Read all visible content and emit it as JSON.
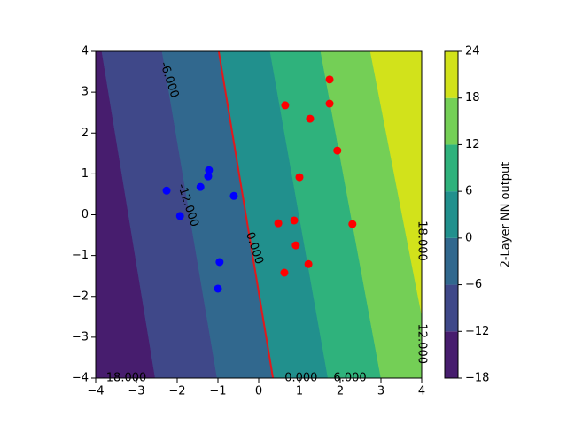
{
  "chart_data": {
    "type": "contour",
    "xlim": [
      -4,
      4
    ],
    "ylim": [
      -4,
      4
    ],
    "xticks": [
      {
        "value": -4,
        "label": "−4"
      },
      {
        "value": -3,
        "label": "−3"
      },
      {
        "value": -2,
        "label": "−2"
      },
      {
        "value": -1,
        "label": "−1"
      },
      0,
      1,
      2,
      3,
      4
    ],
    "yticks": [
      {
        "value": -4,
        "label": "−4"
      },
      {
        "value": -3,
        "label": "−3"
      },
      {
        "value": -2,
        "label": "−2"
      },
      {
        "value": -1,
        "label": "−1"
      },
      0,
      1,
      2,
      3,
      4
    ],
    "levels": [
      -18,
      -12,
      -6,
      0,
      6,
      12,
      18,
      24
    ],
    "colors": [
      "#471d6e",
      "#3f4889",
      "#31688e",
      "#21908d",
      "#2fb27c",
      "#74cf56",
      "#d2e21b"
    ],
    "boundaries": [
      {
        "level": -12,
        "x": [
          -3.85,
          -2.54
        ],
        "y": [
          4,
          -4
        ]
      },
      {
        "level": -6,
        "x": [
          -2.37,
          -1.02
        ],
        "y": [
          4,
          -4
        ]
      },
      {
        "level": 0,
        "x": [
          -0.98,
          0.35
        ],
        "y": [
          4,
          -4
        ],
        "color": "#e0191c"
      },
      {
        "level": 6,
        "x": [
          0.28,
          1.7
        ],
        "y": [
          4,
          -4
        ]
      },
      {
        "level": 12,
        "x": [
          1.52,
          3.0
        ],
        "y": [
          4,
          -4
        ]
      },
      {
        "level": 18,
        "x": [
          2.74,
          4.3
        ],
        "y": [
          4,
          -4
        ]
      }
    ],
    "contour_labels": [
      {
        "label": "-6.000",
        "x": -2.2,
        "y": 3.3
      },
      {
        "label": "-12.000",
        "x": -1.74,
        "y": 0.23
      },
      {
        "label": "0.000",
        "x": -0.11,
        "y": -0.82,
        "color": "#e0191c"
      },
      {
        "label": "-18.000",
        "x": -3.3,
        "y": -4
      },
      {
        "label": "0.000",
        "x": 1.04,
        "y": -4
      },
      {
        "label": "6.000",
        "x": 2.24,
        "y": -4
      },
      {
        "label": "12.000",
        "x": 4,
        "y": -3.16
      },
      {
        "label": "18.000",
        "x": 4,
        "y": -0.64
      }
    ],
    "series": [
      {
        "color": "#0000ff",
        "x": [
          -2.26,
          -1.93,
          -1.43,
          -1.24,
          -1.22,
          -0.61,
          -0.96,
          -1.0
        ],
        "y": [
          0.59,
          -0.03,
          0.68,
          0.94,
          1.09,
          0.46,
          -1.16,
          -1.81
        ]
      },
      {
        "color": "#ff0000",
        "x": [
          1.74,
          0.65,
          1.26,
          1.74,
          1.93,
          1.0,
          0.48,
          0.87,
          2.3,
          0.91,
          1.22,
          0.63
        ],
        "y": [
          3.31,
          2.68,
          2.35,
          2.72,
          1.57,
          0.92,
          -0.21,
          -0.14,
          -0.23,
          -0.75,
          -1.21,
          -1.42
        ]
      }
    ],
    "colorbar": {
      "label": "2-Layer NN output",
      "ticks": [
        {
          "value": -18,
          "label": "−18"
        },
        {
          "value": -12,
          "label": "−12"
        },
        {
          "value": -6,
          "label": "−6"
        },
        0,
        6,
        12,
        18,
        24
      ]
    }
  }
}
